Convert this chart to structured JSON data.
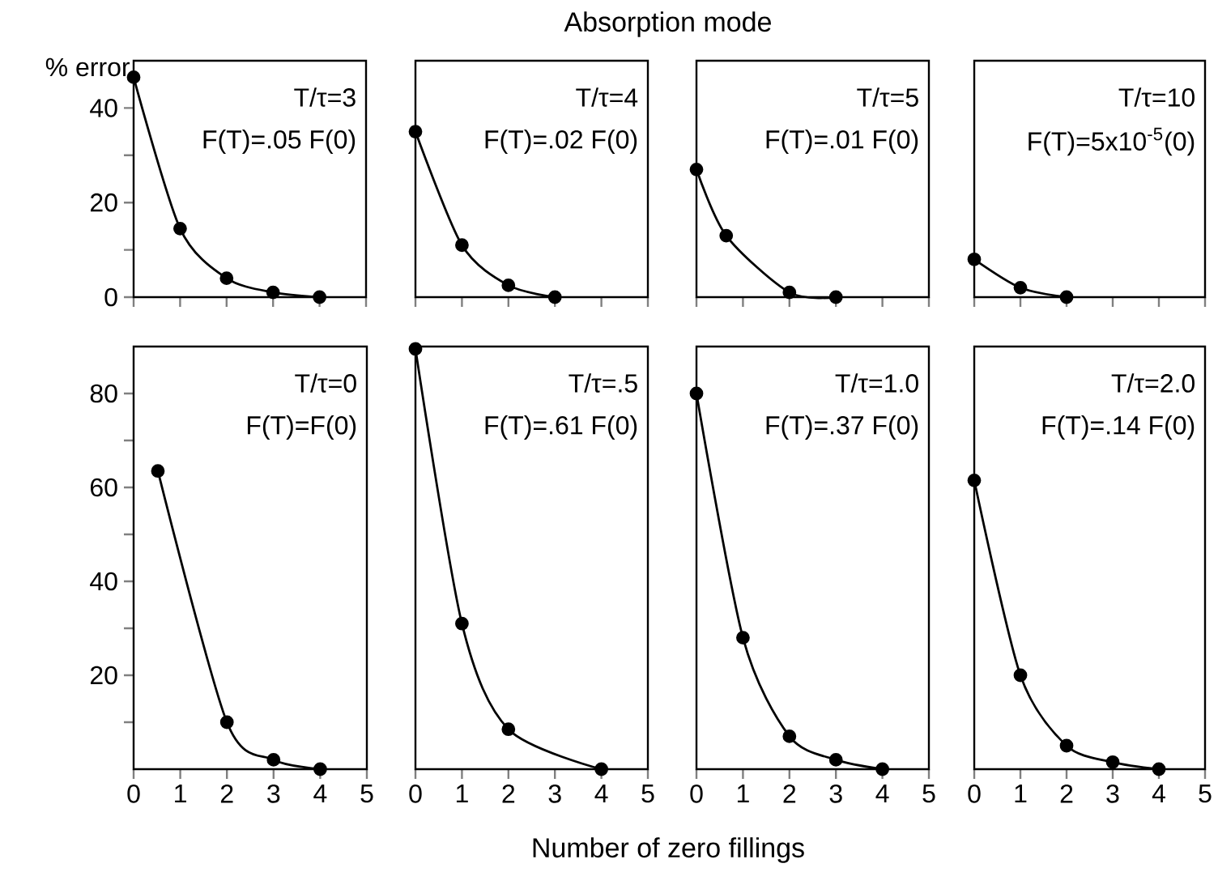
{
  "chart_data": [
    {
      "type": "line",
      "ylabel": "% error",
      "annotations": [
        "T/τ=3",
        "F(T)=.05 F(0)"
      ],
      "x": [
        0,
        1,
        2,
        3,
        4
      ],
      "values": [
        46.5,
        14.5,
        4,
        1,
        0
      ],
      "color": "#000000",
      "marker": "circle",
      "xlim": [
        0,
        5
      ],
      "xticks": [
        0,
        1,
        2,
        3,
        4,
        5
      ],
      "ylim": [
        0,
        50
      ],
      "yticks": [
        0,
        {
          "value": 10,
          "label": null
        },
        20,
        {
          "value": 30,
          "label": null
        },
        40
      ],
      "tick_labels": "y"
    },
    {
      "type": "line",
      "title": "Absorption mode",
      "annotations": [
        "T/τ=4",
        "F(T)=.02 F(0)"
      ],
      "x": [
        0,
        1,
        2,
        3
      ],
      "values": [
        35,
        11,
        2.5,
        0
      ],
      "color": "#000000",
      "marker": "circle",
      "xlim": [
        0,
        5
      ],
      "xticks": [
        0,
        1,
        2,
        3,
        4,
        5
      ],
      "ylim": [
        0,
        50
      ],
      "tick_labels": false
    },
    {
      "type": "line",
      "annotations": [
        "T/τ=5",
        "F(T)=.01 F(0)"
      ],
      "x": [
        0,
        0.64,
        2,
        3
      ],
      "values": [
        27,
        13,
        1,
        0
      ],
      "color": "#000000",
      "marker": "circle",
      "xlim": [
        0,
        5
      ],
      "xticks": [
        0,
        1,
        2,
        3,
        4,
        5
      ],
      "ylim": [
        0,
        50
      ],
      "tick_labels": false
    },
    {
      "type": "line",
      "annotations": [
        "T/τ=10",
        "F(T)=5x10$^{-5}$(0)"
      ],
      "x": [
        0,
        1,
        2
      ],
      "values": [
        8,
        2,
        0
      ],
      "color": "#000000",
      "marker": "circle",
      "xlim": [
        0,
        5
      ],
      "xticks": [
        0,
        1,
        2,
        3,
        4,
        5
      ],
      "ylim": [
        0,
        50
      ],
      "tick_labels": false
    },
    {
      "type": "line",
      "annotations": [
        "T/τ=0",
        "F(T)=F(0)"
      ],
      "x": [
        0.52,
        2,
        3,
        4
      ],
      "values": [
        63.5,
        10,
        2,
        0
      ],
      "color": "#000000",
      "marker": "circle",
      "xlim": [
        0,
        5
      ],
      "xticks": [
        0,
        1,
        2,
        3,
        4,
        5
      ],
      "ylim": [
        0,
        90
      ],
      "yticks": [
        {
          "value": 10,
          "label": null
        },
        20,
        {
          "value": 30,
          "label": null
        },
        40,
        {
          "value": 50,
          "label": null
        },
        60,
        {
          "value": 70,
          "label": null
        },
        80
      ]
    },
    {
      "type": "line",
      "xlabel": "Number of zero fillings",
      "annotations": [
        "T/τ=.5",
        "F(T)=.61 F(0)"
      ],
      "x": [
        0,
        1,
        2,
        4
      ],
      "values": [
        89.5,
        31,
        8.5,
        0
      ],
      "color": "#000000",
      "marker": "circle",
      "xlim": [
        0,
        5
      ],
      "xticks": [
        0,
        1,
        2,
        3,
        4,
        5
      ],
      "ylim": [
        0,
        90
      ],
      "tick_labels": "x"
    },
    {
      "type": "line",
      "annotations": [
        "T/τ=1.0",
        "F(T)=.37 F(0)"
      ],
      "x": [
        0,
        1,
        2,
        3,
        4
      ],
      "values": [
        80,
        28,
        7,
        2,
        0
      ],
      "color": "#000000",
      "marker": "circle",
      "xlim": [
        0,
        5
      ],
      "xticks": [
        0,
        1,
        2,
        3,
        4,
        5
      ],
      "ylim": [
        0,
        90
      ],
      "tick_labels": "x"
    },
    {
      "type": "line",
      "annotations": [
        "T/τ=2.0",
        "F(T)=.14 F(0)"
      ],
      "x": [
        0,
        1,
        2,
        3,
        4
      ],
      "values": [
        61.5,
        20,
        5,
        1.5,
        0
      ],
      "color": "#000000",
      "marker": "circle",
      "xlim": [
        0,
        5
      ],
      "xticks": [
        0,
        1,
        2,
        3,
        4,
        5
      ],
      "ylim": [
        0,
        90
      ],
      "tick_labels": "x"
    }
  ]
}
